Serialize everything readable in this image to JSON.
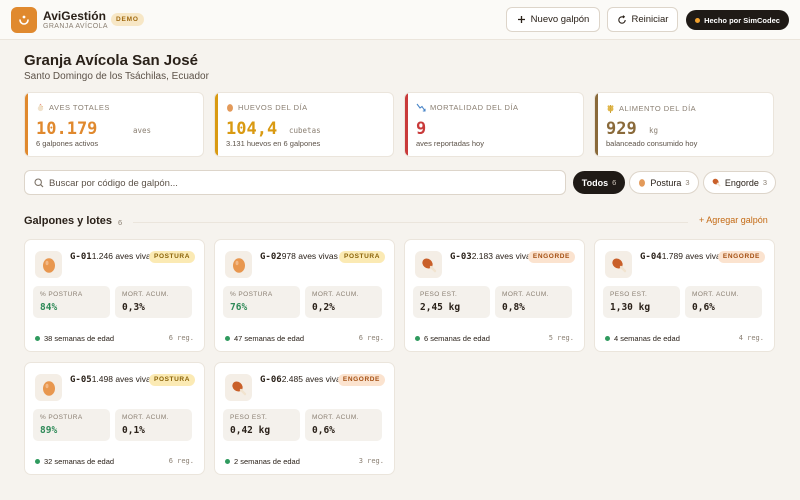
{
  "header": {
    "brand_name": "AviGestión",
    "brand_sub": "GRANJA AVÍCOLA",
    "demo_badge": "DEMO",
    "new_barn_label": "Nuevo galpón",
    "reset_label": "Reiniciar",
    "made_by_label": "Hecho por SimCodec"
  },
  "farm": {
    "name": "Granja Avícola San José",
    "location": "Santo Domingo de los Tsáchilas, Ecuador"
  },
  "kpis": [
    {
      "label": "AVES TOTALES",
      "value": "10.179",
      "unit": "aves",
      "sub": "6 galpones activos",
      "color": "#e0892e",
      "icon": "chicken-icon"
    },
    {
      "label": "HUEVOS DEL DÍA",
      "value": "104,4",
      "unit": "cubetas",
      "sub": "3.131 huevos en 6 galpones",
      "color": "#d99a12",
      "icon": "egg-icon"
    },
    {
      "label": "MORTALIDAD DEL DÍA",
      "value": "9",
      "unit": "",
      "sub": "aves reportadas hoy",
      "color": "#c93a3a",
      "icon": "trend-down-icon"
    },
    {
      "label": "ALIMENTO DEL DÍA",
      "value": "929",
      "unit": "kg",
      "sub": "balanceado consumido hoy",
      "color": "#8a6a3a",
      "icon": "wheat-icon"
    }
  ],
  "search": {
    "placeholder": "Buscar por código de galpón..."
  },
  "filters": [
    {
      "label": "Todos",
      "count": "6",
      "active": true
    },
    {
      "label": "Postura",
      "count": "3",
      "icon": "egg-icon"
    },
    {
      "label": "Engorde",
      "count": "3",
      "icon": "drumstick-icon"
    }
  ],
  "section": {
    "title": "Galpones y lotes",
    "count": "6",
    "add_label": "+ Agregar galpón"
  },
  "barns": [
    {
      "code": "G-01",
      "birds": "1.246 aves vivas",
      "type": "POSTURA",
      "icon": "egg-icon",
      "stat1_label": "% POSTURA",
      "stat1_value": "84%",
      "stat2_label": "MORT. ACUM.",
      "stat2_value": "0,3%",
      "age": "38 semanas de edad",
      "records": "6 reg."
    },
    {
      "code": "G-02",
      "birds": "978 aves vivas",
      "type": "POSTURA",
      "icon": "egg-icon",
      "stat1_label": "% POSTURA",
      "stat1_value": "76%",
      "stat2_label": "MORT. ACUM.",
      "stat2_value": "0,2%",
      "age": "47 semanas de edad",
      "records": "6 reg."
    },
    {
      "code": "G-03",
      "birds": "2.183 aves vivas",
      "type": "ENGORDE",
      "icon": "drumstick-icon",
      "stat1_label": "PESO EST.",
      "stat1_value": "2,45 kg",
      "stat2_label": "MORT. ACUM.",
      "stat2_value": "0,8%",
      "age": "6 semanas de edad",
      "records": "5 reg."
    },
    {
      "code": "G-04",
      "birds": "1.789 aves vivas",
      "type": "ENGORDE",
      "icon": "drumstick-icon",
      "stat1_label": "PESO EST.",
      "stat1_value": "1,30 kg",
      "stat2_label": "MORT. ACUM.",
      "stat2_value": "0,6%",
      "age": "4 semanas de edad",
      "records": "4 reg."
    },
    {
      "code": "G-05",
      "birds": "1.498 aves vivas",
      "type": "POSTURA",
      "icon": "egg-icon",
      "stat1_label": "% POSTURA",
      "stat1_value": "89%",
      "stat2_label": "MORT. ACUM.",
      "stat2_value": "0,1%",
      "age": "32 semanas de edad",
      "records": "6 reg."
    },
    {
      "code": "G-06",
      "birds": "2.485 aves vivas",
      "type": "ENGORDE",
      "icon": "drumstick-icon",
      "stat1_label": "PESO EST.",
      "stat1_value": "0,42 kg",
      "stat2_label": "MORT. ACUM.",
      "stat2_value": "0,6%",
      "age": "2 semanas de edad",
      "records": "3 reg."
    }
  ]
}
